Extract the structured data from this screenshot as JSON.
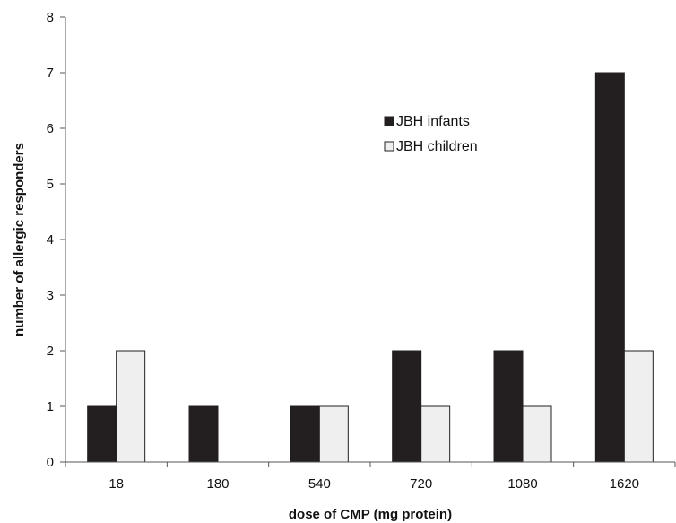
{
  "chart_data": {
    "type": "bar",
    "title": "",
    "xlabel": "dose of CMP (mg protein)",
    "ylabel": "number of allergic responders",
    "categories": [
      "18",
      "180",
      "540",
      "720",
      "1080",
      "1620"
    ],
    "ylim": [
      0,
      8
    ],
    "yticks": [
      "0",
      "1",
      "2",
      "3",
      "4",
      "5",
      "6",
      "7",
      "8"
    ],
    "grid": false,
    "legend_position": "upper-center",
    "series": [
      {
        "name": "JBH infants",
        "color": "#231f20",
        "values": [
          1,
          1,
          1,
          2,
          2,
          7
        ]
      },
      {
        "name": "JBH children",
        "color": "#efefef",
        "values": [
          2,
          0,
          1,
          1,
          1,
          2
        ]
      }
    ]
  }
}
